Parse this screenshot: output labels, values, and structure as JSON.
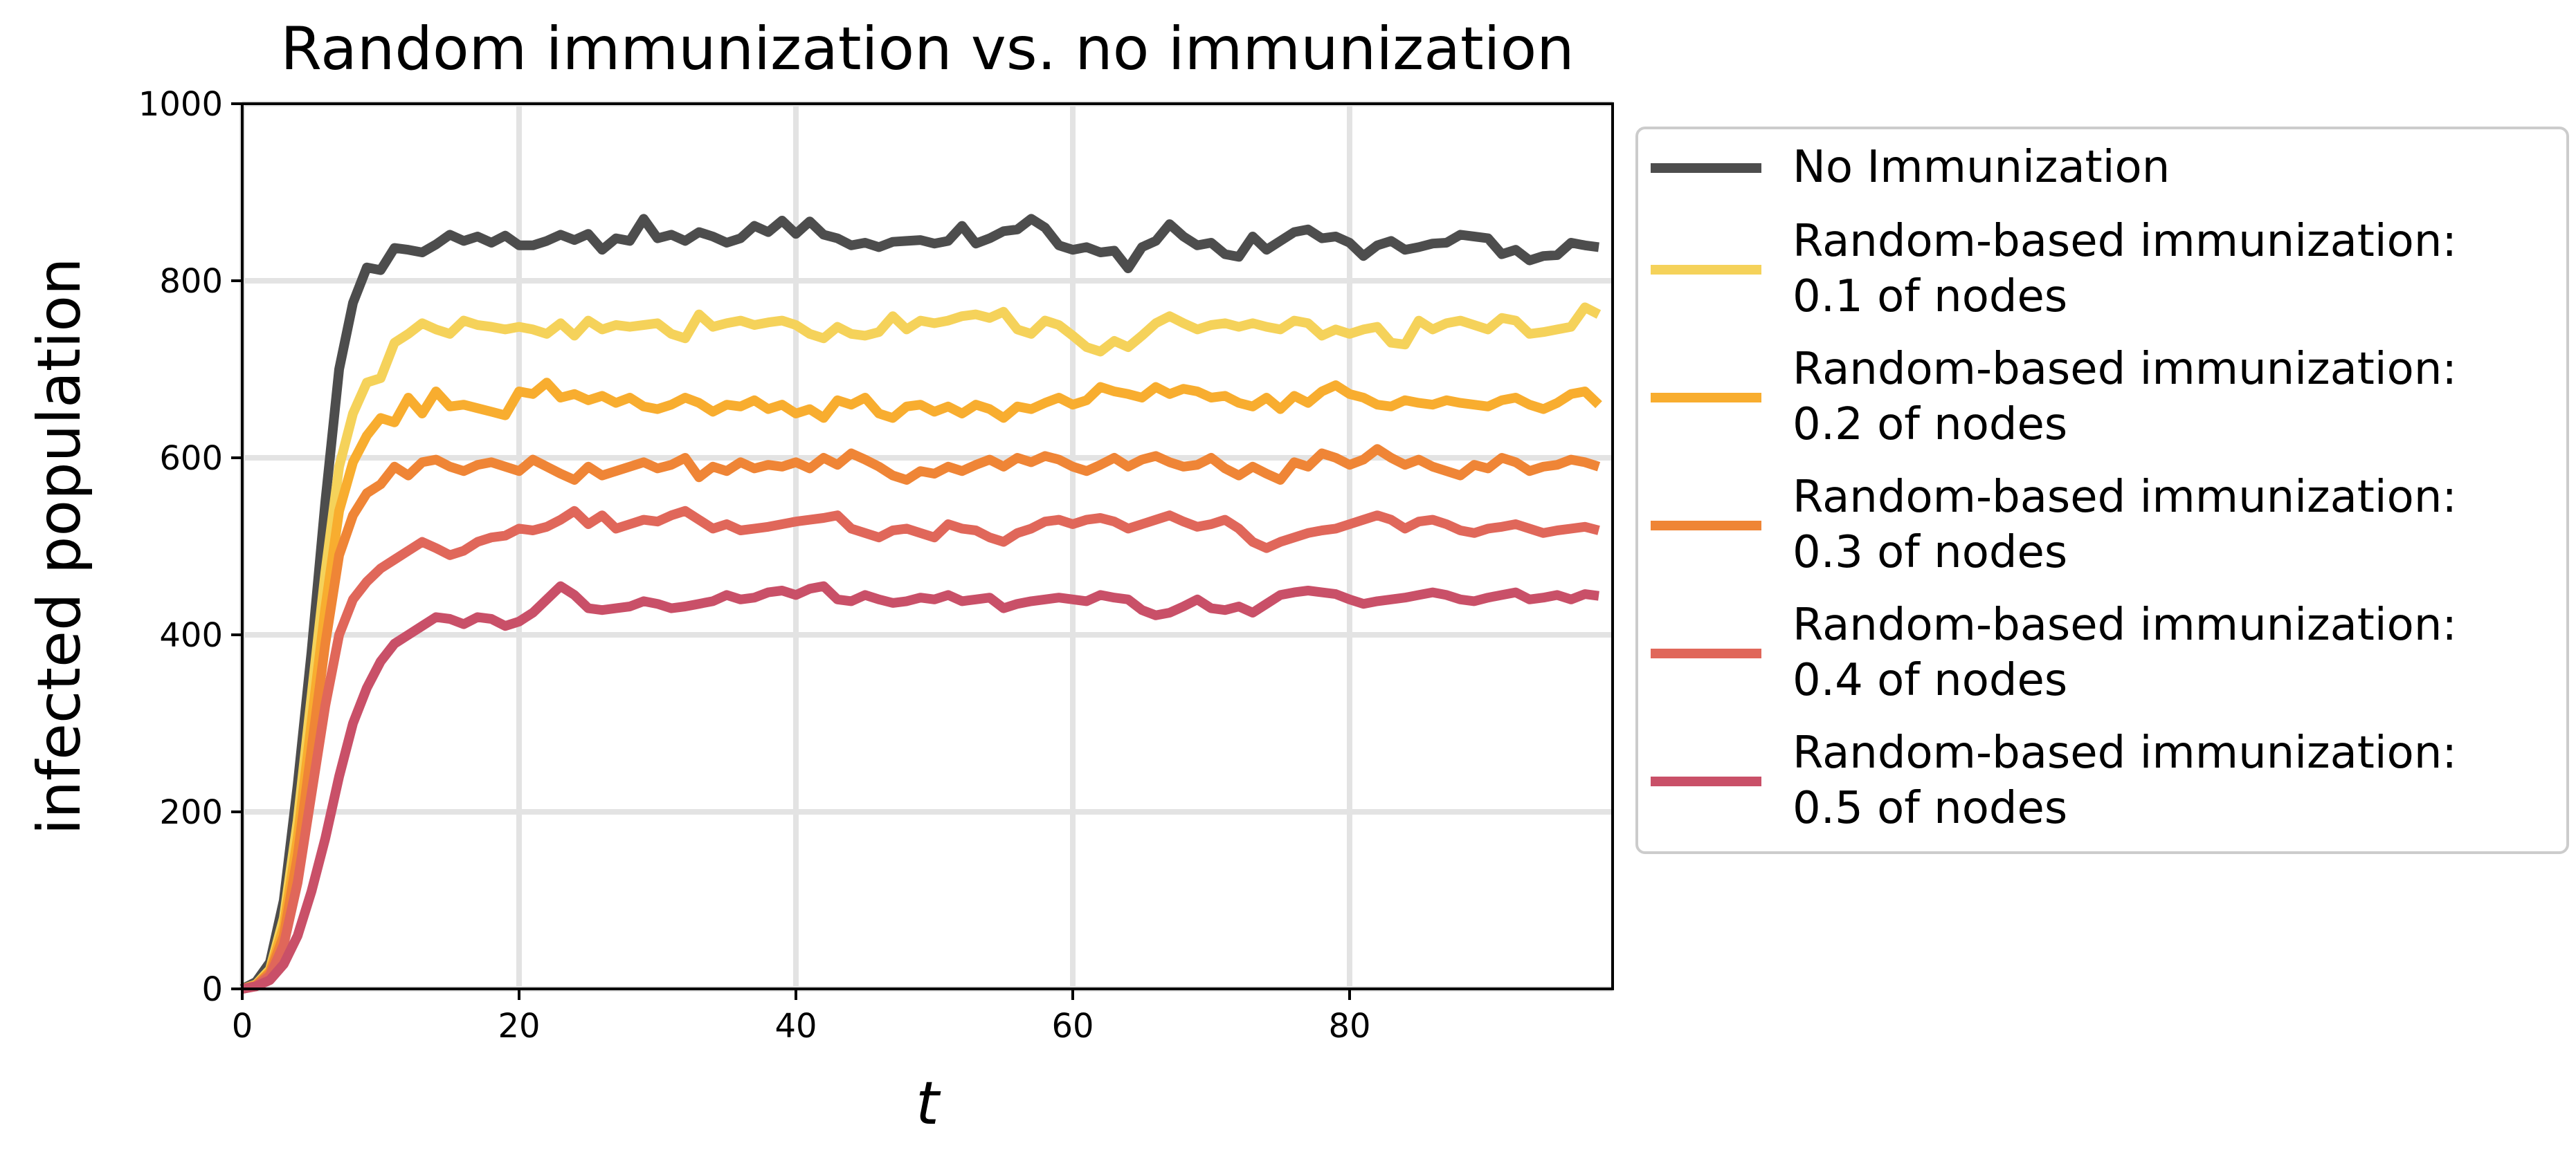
{
  "chart_data": {
    "type": "line",
    "title": "Random immunization vs. no immunization",
    "xlabel": "t",
    "ylabel": "infected population",
    "xlim": [
      0,
      99
    ],
    "ylim": [
      0,
      1000
    ],
    "xticks": [
      0,
      20,
      40,
      60,
      80
    ],
    "yticks": [
      0,
      200,
      400,
      600,
      800,
      1000
    ],
    "grid": true,
    "legend_position": "outside-right",
    "series": [
      {
        "name": "No Immunization",
        "color": "#4d4d4d",
        "values": [
          0,
          8,
          30,
          100,
          230,
          380,
          550,
          700,
          775,
          815,
          812,
          837,
          835,
          832,
          841,
          852,
          845,
          850,
          843,
          851,
          840,
          840,
          845,
          852,
          846,
          853,
          835,
          848,
          845,
          870,
          848,
          852,
          845,
          855,
          850,
          843,
          848,
          862,
          855,
          868,
          853,
          867,
          852,
          848,
          840,
          843,
          838,
          844,
          845,
          846,
          842,
          845,
          862,
          842,
          848,
          856,
          858,
          870,
          860,
          840,
          835,
          838,
          832,
          834,
          814,
          838,
          845,
          864,
          850,
          840,
          843,
          830,
          827,
          850,
          835,
          845,
          855,
          858,
          848,
          850,
          843,
          828,
          840,
          845,
          835,
          838,
          842,
          843,
          852,
          850,
          848,
          830,
          835,
          823,
          828,
          829,
          843,
          840,
          838
        ]
      },
      {
        "name": "Random-based immunization:\n0.1 of nodes",
        "color": "#f5d25a",
        "values": [
          0,
          5,
          22,
          80,
          190,
          330,
          470,
          590,
          650,
          685,
          690,
          730,
          740,
          752,
          745,
          740,
          755,
          750,
          748,
          745,
          748,
          745,
          740,
          752,
          738,
          755,
          745,
          750,
          748,
          750,
          752,
          740,
          735,
          762,
          748,
          752,
          755,
          750,
          753,
          755,
          750,
          740,
          735,
          748,
          740,
          738,
          742,
          760,
          745,
          755,
          752,
          755,
          760,
          762,
          758,
          765,
          745,
          740,
          755,
          750,
          738,
          725,
          720,
          732,
          725,
          738,
          752,
          760,
          752,
          745,
          750,
          752,
          748,
          752,
          748,
          745,
          755,
          752,
          738,
          745,
          740,
          745,
          748,
          730,
          728,
          755,
          745,
          752,
          755,
          750,
          745,
          758,
          755,
          740,
          742,
          745,
          748,
          770,
          762
        ]
      },
      {
        "name": "Random-based immunization:\n0.2 of nodes",
        "color": "#f8ad2f",
        "values": [
          0,
          4,
          20,
          70,
          170,
          300,
          430,
          540,
          595,
          625,
          645,
          640,
          668,
          650,
          675,
          658,
          660,
          656,
          652,
          648,
          675,
          672,
          685,
          668,
          672,
          665,
          670,
          662,
          668,
          658,
          655,
          660,
          668,
          662,
          652,
          660,
          658,
          665,
          655,
          660,
          650,
          655,
          645,
          665,
          660,
          668,
          650,
          645,
          658,
          660,
          652,
          658,
          650,
          660,
          655,
          645,
          658,
          655,
          662,
          668,
          660,
          665,
          680,
          675,
          672,
          668,
          680,
          672,
          678,
          675,
          668,
          670,
          662,
          658,
          668,
          655,
          670,
          662,
          675,
          682,
          672,
          668,
          660,
          658,
          665,
          662,
          660,
          665,
          662,
          660,
          658,
          665,
          668,
          660,
          655,
          662,
          672,
          675,
          660
        ]
      },
      {
        "name": "Random-based immunization:\n0.3 of nodes",
        "color": "#ef8536",
        "values": [
          0,
          4,
          18,
          60,
          150,
          270,
          390,
          490,
          535,
          560,
          570,
          590,
          580,
          595,
          598,
          590,
          585,
          592,
          595,
          590,
          585,
          598,
          590,
          582,
          575,
          590,
          580,
          585,
          590,
          595,
          588,
          592,
          600,
          578,
          590,
          585,
          595,
          588,
          592,
          590,
          595,
          588,
          600,
          592,
          605,
          598,
          590,
          580,
          575,
          585,
          582,
          590,
          585,
          592,
          598,
          590,
          600,
          595,
          602,
          598,
          590,
          585,
          592,
          600,
          590,
          598,
          602,
          595,
          590,
          592,
          600,
          588,
          580,
          590,
          582,
          575,
          595,
          590,
          605,
          600,
          592,
          598,
          610,
          600,
          592,
          598,
          590,
          585,
          580,
          592,
          588,
          600,
          595,
          585,
          590,
          592,
          598,
          595,
          590
        ]
      },
      {
        "name": "Random-based immunization:\n0.4 of nodes",
        "color": "#e0675a",
        "values": [
          0,
          3,
          15,
          50,
          120,
          220,
          320,
          400,
          440,
          460,
          475,
          485,
          495,
          505,
          498,
          490,
          495,
          505,
          510,
          512,
          520,
          518,
          522,
          530,
          540,
          525,
          535,
          520,
          525,
          530,
          528,
          535,
          540,
          530,
          520,
          525,
          518,
          520,
          522,
          525,
          528,
          530,
          532,
          535,
          520,
          515,
          510,
          518,
          520,
          515,
          510,
          525,
          520,
          518,
          510,
          505,
          515,
          520,
          528,
          530,
          525,
          530,
          532,
          528,
          520,
          525,
          530,
          535,
          528,
          522,
          525,
          530,
          520,
          505,
          498,
          505,
          510,
          515,
          518,
          520,
          525,
          530,
          535,
          530,
          520,
          528,
          530,
          525,
          518,
          515,
          520,
          522,
          525,
          520,
          515,
          518,
          520,
          522,
          518
        ]
      },
      {
        "name": "Random-based immunization:\n0.5 of nodes",
        "color": "#c95068",
        "values": [
          0,
          3,
          10,
          28,
          60,
          110,
          170,
          240,
          300,
          340,
          370,
          390,
          400,
          410,
          420,
          418,
          412,
          420,
          418,
          410,
          415,
          425,
          440,
          455,
          445,
          430,
          428,
          430,
          432,
          438,
          435,
          430,
          432,
          435,
          438,
          445,
          440,
          442,
          448,
          450,
          445,
          452,
          455,
          440,
          438,
          445,
          440,
          436,
          438,
          442,
          440,
          445,
          438,
          440,
          442,
          430,
          435,
          438,
          440,
          442,
          440,
          438,
          445,
          442,
          440,
          428,
          422,
          425,
          432,
          440,
          430,
          428,
          432,
          425,
          435,
          445,
          448,
          450,
          448,
          446,
          440,
          435,
          438,
          440,
          442,
          445,
          448,
          445,
          440,
          438,
          442,
          445,
          448,
          440,
          442,
          445,
          440,
          446,
          444
        ]
      }
    ]
  }
}
